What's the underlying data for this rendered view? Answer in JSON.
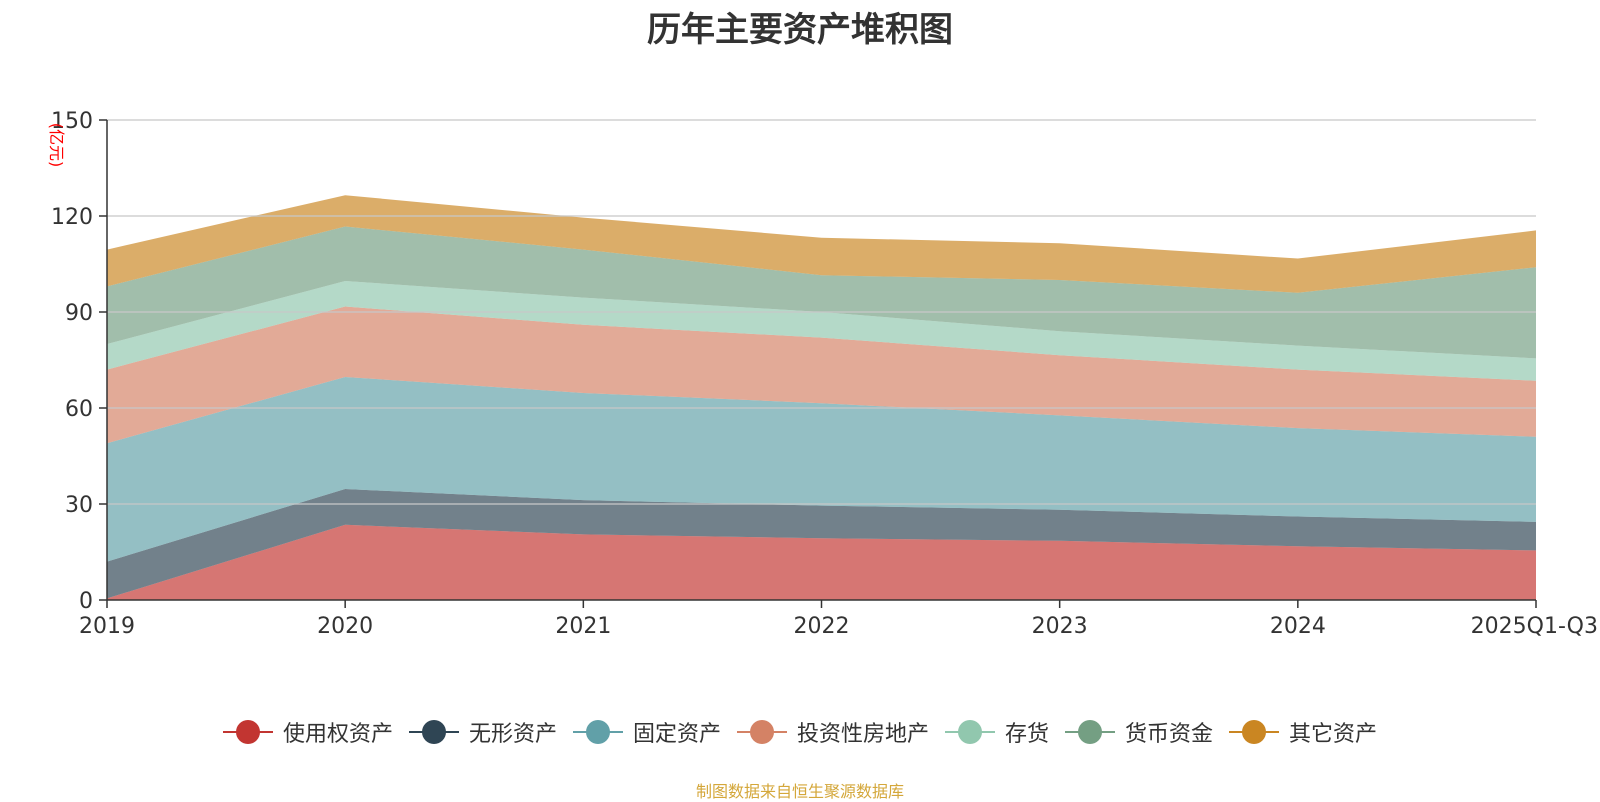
{
  "chart_data": {
    "type": "area",
    "stacked": true,
    "title": "历年主要资产堆积图",
    "unit_label": "(亿元)",
    "xlabel": "",
    "ylabel": "",
    "ylim": [
      0,
      150
    ],
    "yticks": [
      0,
      30,
      60,
      90,
      120,
      150
    ],
    "categories": [
      "2019",
      "2020",
      "2021",
      "2022",
      "2023",
      "2024",
      "2025Q1-Q3"
    ],
    "series": [
      {
        "name": "使用权资产",
        "color": "#c23531",
        "values": [
          0.5,
          23.5,
          20.5,
          19.3,
          18.5,
          16.8,
          15.5
        ]
      },
      {
        "name": "无形资产",
        "color": "#2f4554",
        "values": [
          11.5,
          11.2,
          10.7,
          10.2,
          9.7,
          9.3,
          8.9
        ]
      },
      {
        "name": "固定资产",
        "color": "#61a0a8",
        "values": [
          37,
          35,
          33.5,
          32,
          29.5,
          27.6,
          26.6
        ]
      },
      {
        "name": "投资性房地产",
        "color": "#d48265",
        "values": [
          23,
          22,
          21.3,
          20.5,
          18.8,
          18.3,
          17.5
        ]
      },
      {
        "name": "存货",
        "color": "#91c7ae",
        "values": [
          8,
          8,
          8.5,
          8,
          7.5,
          7.5,
          7
        ]
      },
      {
        "name": "货币资金",
        "color": "#749f83",
        "values": [
          18,
          17,
          15,
          11.5,
          16,
          16.5,
          28.5
        ]
      },
      {
        "name": "其它资产",
        "color": "#ca8622",
        "values": [
          11.5,
          9.8,
          10,
          11.7,
          11.5,
          10.7,
          11.5
        ]
      }
    ],
    "legend_position": "bottom",
    "grid": true
  },
  "source_note": "制图数据来自恒生聚源数据库",
  "colors": {
    "axis": "#333333",
    "grid": "#c8c8c8",
    "unit_label": "#ff0000",
    "source_note": "#d4a73a"
  }
}
